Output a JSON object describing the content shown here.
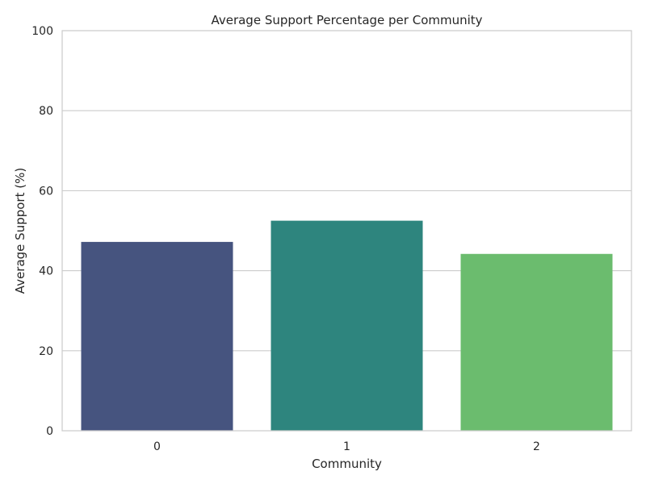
{
  "chart_data": {
    "type": "bar",
    "title": "Average Support Percentage per Community",
    "xlabel": "Community",
    "ylabel": "Average Support (%)",
    "categories": [
      "0",
      "1",
      "2"
    ],
    "values": [
      47.2,
      52.5,
      44.2
    ],
    "colors": [
      "#46547f",
      "#2e857e",
      "#6bbc6e"
    ],
    "ylim": [
      0,
      100
    ],
    "yticks": [
      0,
      20,
      40,
      60,
      80,
      100
    ],
    "grid": "horizontal",
    "legend": "none"
  }
}
